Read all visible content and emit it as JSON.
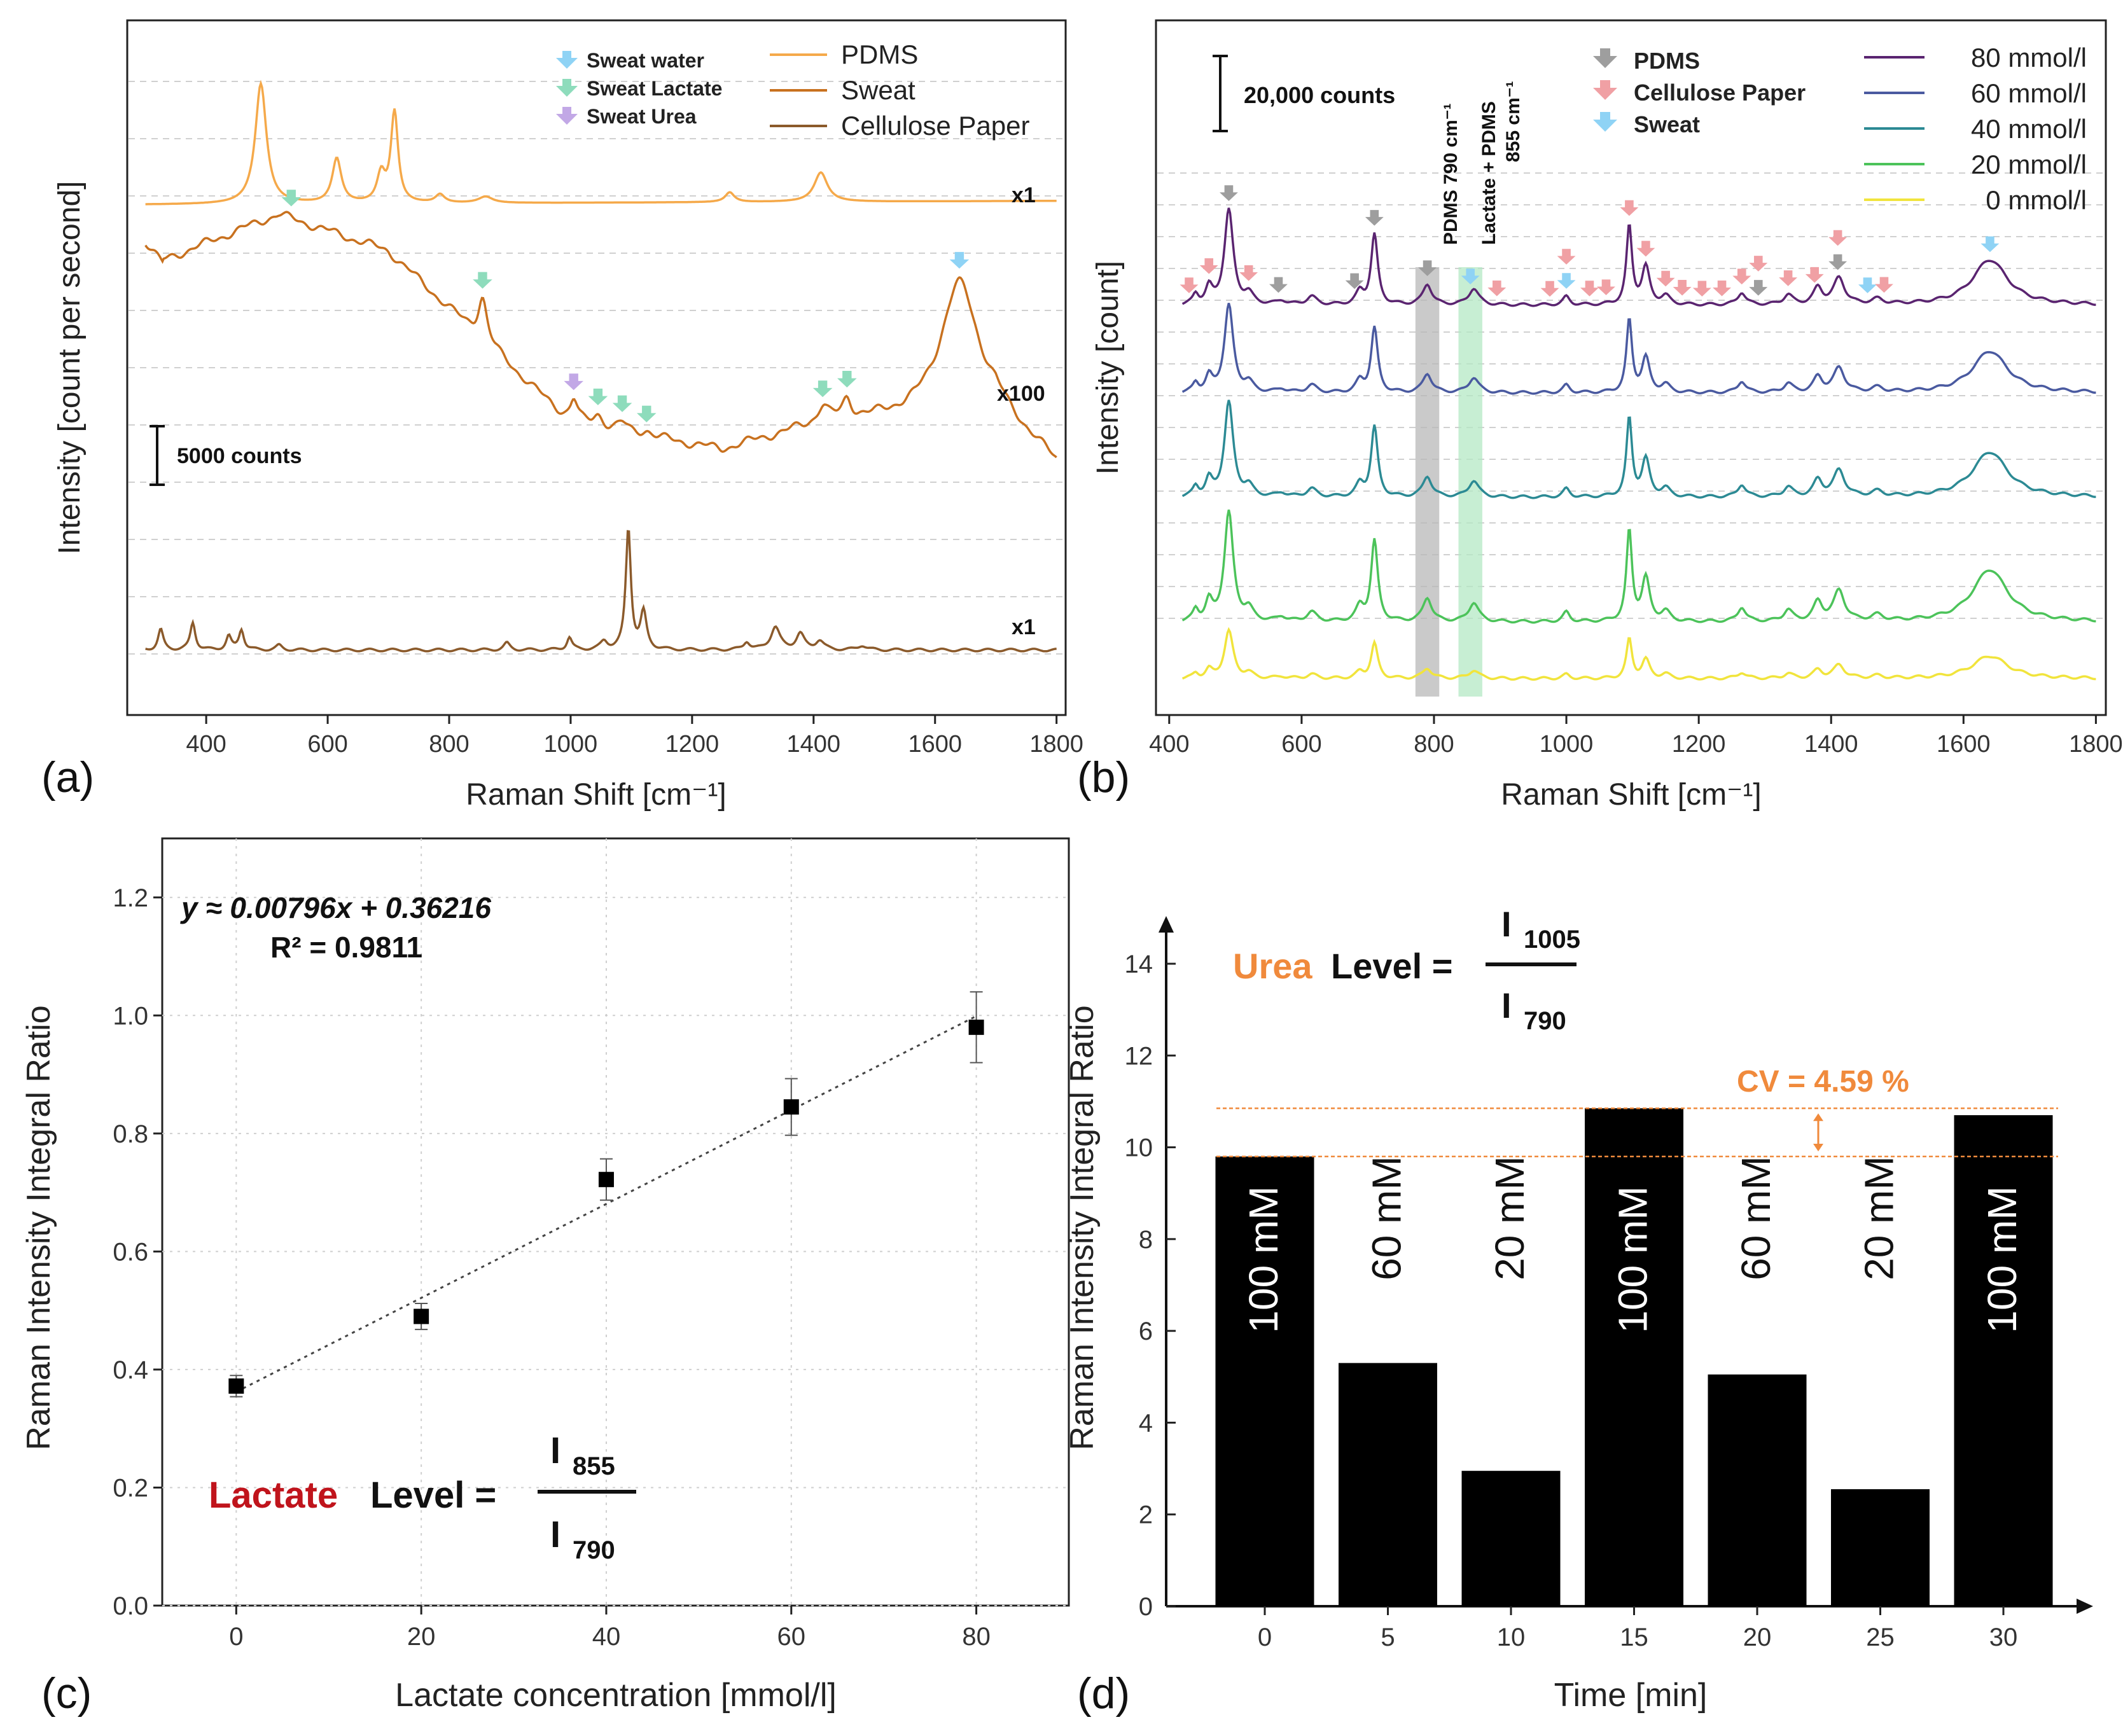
{
  "chart_data": [
    {
      "panel": "(a)",
      "type": "line",
      "xlabel": "Raman Shift [cm⁻¹]",
      "ylabel": "Intensity [count per second]",
      "xlim": [
        270,
        1815
      ],
      "xticks": [
        400,
        600,
        800,
        1000,
        1200,
        1400,
        1600,
        1800
      ],
      "grid": "horizontal dashed",
      "legend_lines": [
        "PDMS",
        "Sweat",
        "Cellulose Paper"
      ],
      "legend_markers": [
        "Sweat water",
        "Sweat Lactate",
        "Sweat Urea"
      ],
      "scale_bar": "5000 counts",
      "series": [
        {
          "name": "PDMS",
          "color": "#f5a94a",
          "multiplier": "x1",
          "baseline": 0.92,
          "peaks": [
            [
              490,
              8.6,
              11
            ],
            [
              615,
              3.2,
              9
            ],
            [
              710,
              6.5,
              7
            ],
            [
              688,
              2.0,
              8
            ],
            [
              785,
              0.6,
              9
            ],
            [
              860,
              0.45,
              14
            ],
            [
              1262,
              0.7,
              9
            ],
            [
              1412,
              2.1,
              13
            ]
          ]
        },
        {
          "name": "Sweat",
          "color": "#c8711f",
          "multiplier": "x100",
          "arrows": [
            [
              540,
              "Sweat Lactate"
            ],
            [
              855,
              "Sweat Lactate"
            ],
            [
              1005,
              "Sweat Urea"
            ],
            [
              1045,
              "Sweat Lactate"
            ],
            [
              1085,
              "Sweat Lactate"
            ],
            [
              1125,
              "Sweat Lactate"
            ],
            [
              1415,
              "Sweat Lactate"
            ],
            [
              1455,
              "Sweat Lactate"
            ],
            [
              1640,
              "Sweat water"
            ]
          ]
        },
        {
          "name": "Cellulose Paper",
          "color": "#8b5a2b",
          "multiplier": "x1",
          "baseline": 0.28,
          "peaks": [
            [
              325,
              0.9,
              5
            ],
            [
              378,
              1.2,
              5
            ],
            [
              437,
              0.6,
              5
            ],
            [
              458,
              0.9,
              5
            ],
            [
              520,
              0.2,
              6
            ],
            [
              895,
              0.3,
              6
            ],
            [
              998,
              0.55,
              5
            ],
            [
              1055,
              0.35,
              7
            ],
            [
              1095,
              5.3,
              5
            ],
            [
              1120,
              1.6,
              6
            ],
            [
              1290,
              0.35,
              6
            ],
            [
              1337,
              1.0,
              9
            ],
            [
              1378,
              0.7,
              8
            ],
            [
              1410,
              0.4,
              8
            ],
            [
              1480,
              0.2,
              8
            ]
          ]
        }
      ]
    },
    {
      "panel": "(b)",
      "type": "line",
      "xlabel": "Raman Shift [cm⁻¹]",
      "ylabel": "Intensity [count]",
      "xlim": [
        380,
        1815
      ],
      "xticks": [
        400,
        600,
        800,
        1000,
        1200,
        1400,
        1600,
        1800
      ],
      "grid": "horizontal dashed",
      "scale_bar": "20,000 counts",
      "legend_markers": [
        "PDMS",
        "Cellulose Paper",
        "Sweat"
      ],
      "bands": [
        {
          "label": "PDMS 790 cm⁻¹",
          "center": 790,
          "color": "#b8b8b8"
        },
        {
          "label": "Lactate + PDMS 855 cm⁻¹",
          "center": 855,
          "color": "#b4e8c4"
        }
      ],
      "series": [
        {
          "name": "80 mmol/l",
          "color": "#5a2470",
          "offset": 4,
          "scale": 1.0
        },
        {
          "name": "60 mmol/l",
          "color": "#4a5aa0",
          "offset": 3,
          "scale": 1.0
        },
        {
          "name": "40 mmol/l",
          "color": "#2c8a94",
          "offset": 2,
          "scale": 1.0
        },
        {
          "name": "20 mmol/l",
          "color": "#4cc35a",
          "offset": 1,
          "scale": 1.0
        },
        {
          "name": "0 mmol/l",
          "color": "#f1e43c",
          "offset": 0,
          "scale": 0.55
        }
      ],
      "peak_profile": [
        [
          440,
          0.12,
          5
        ],
        [
          460,
          0.2,
          6
        ],
        [
          490,
          1.15,
          8
        ],
        [
          520,
          0.12,
          8
        ],
        [
          570,
          0.05,
          8
        ],
        [
          615,
          0.1,
          9
        ],
        [
          688,
          0.15,
          7
        ],
        [
          710,
          0.85,
          6
        ],
        [
          790,
          0.25,
          8
        ],
        [
          860,
          0.2,
          9
        ],
        [
          1000,
          0.1,
          6
        ],
        [
          1095,
          0.95,
          5
        ],
        [
          1120,
          0.45,
          7
        ],
        [
          1150,
          0.1,
          8
        ],
        [
          1265,
          0.15,
          7
        ],
        [
          1335,
          0.12,
          8
        ],
        [
          1380,
          0.2,
          8
        ],
        [
          1412,
          0.32,
          10
        ],
        [
          1470,
          0.06,
          10
        ],
        [
          1640,
          0.55,
          32
        ]
      ],
      "arrows": [
        [
          430,
          "Cellulose Paper"
        ],
        [
          460,
          "Cellulose Paper"
        ],
        [
          490,
          "PDMS"
        ],
        [
          520,
          "Cellulose Paper"
        ],
        [
          565,
          "PDMS"
        ],
        [
          680,
          "PDMS"
        ],
        [
          710,
          "PDMS"
        ],
        [
          790,
          "PDMS"
        ],
        [
          855,
          "Sweat"
        ],
        [
          895,
          "Cellulose Paper"
        ],
        [
          975,
          "Cellulose Paper"
        ],
        [
          1000,
          "Sweat"
        ],
        [
          1000,
          "Cellulose Paper"
        ],
        [
          1035,
          "Cellulose Paper"
        ],
        [
          1060,
          "Cellulose Paper"
        ],
        [
          1095,
          "Cellulose Paper"
        ],
        [
          1120,
          "Cellulose Paper"
        ],
        [
          1150,
          "Cellulose Paper"
        ],
        [
          1175,
          "Cellulose Paper"
        ],
        [
          1205,
          "Cellulose Paper"
        ],
        [
          1235,
          "Cellulose Paper"
        ],
        [
          1265,
          "Cellulose Paper"
        ],
        [
          1290,
          "PDMS"
        ],
        [
          1290,
          "Cellulose Paper"
        ],
        [
          1335,
          "Cellulose Paper"
        ],
        [
          1375,
          "Cellulose Paper"
        ],
        [
          1410,
          "PDMS"
        ],
        [
          1410,
          "Cellulose Paper"
        ],
        [
          1455,
          "Sweat"
        ],
        [
          1480,
          "Cellulose Paper"
        ],
        [
          1640,
          "Sweat"
        ]
      ]
    },
    {
      "panel": "(c)",
      "type": "scatter",
      "xlabel": "Lactate concentration [mmol/l]",
      "ylabel": "Raman Intensity Integral Ratio",
      "xlim": [
        -8,
        90
      ],
      "ylim": [
        0.0,
        1.3
      ],
      "xticks": [
        0,
        20,
        40,
        60,
        80
      ],
      "yticks": [
        0.0,
        0.2,
        0.4,
        0.6,
        0.8,
        1.0,
        1.2
      ],
      "grid": "dotted",
      "x": [
        0,
        20,
        40,
        60,
        80
      ],
      "y": [
        0.372,
        0.49,
        0.722,
        0.845,
        0.98
      ],
      "yerr": [
        0.018,
        0.022,
        0.035,
        0.048,
        0.06
      ],
      "fit": {
        "slope": 0.00796,
        "intercept": 0.36216,
        "r2": 0.9811
      },
      "equation_text": "y ≈ 0.00796x + 0.36216",
      "r2_text": "R² = 0.9811",
      "formula": {
        "name": "Lactate",
        "rest": "Level =",
        "numerator": "I",
        "numerator_sub": "855",
        "denominator": "I",
        "denominator_sub": "790",
        "accent": "#c0141c"
      }
    },
    {
      "panel": "(d)",
      "type": "bar",
      "xlabel": "Time [min]",
      "ylabel": "Raman Intensity Integral Ratio",
      "ylim": [
        0,
        15
      ],
      "yticks": [
        0,
        2,
        4,
        6,
        8,
        10,
        12,
        14
      ],
      "x": [
        0,
        5,
        10,
        15,
        20,
        25,
        30
      ],
      "values": [
        9.8,
        5.3,
        2.95,
        10.85,
        5.05,
        2.55,
        10.7
      ],
      "bar_labels": [
        "100 mM",
        "60 mM",
        "20 mM",
        "100 mM",
        "60 mM",
        "20 mM",
        "100 mM"
      ],
      "bar_color": "#000000",
      "reference_lines": [
        10.85,
        9.8
      ],
      "cv_text": "CV = 4.59 %",
      "formula": {
        "name": "Urea",
        "rest": "Level =",
        "numerator": "I",
        "numerator_sub": "1005",
        "denominator": "I",
        "denominator_sub": "790",
        "accent": "#f08a3c"
      }
    }
  ],
  "panel_labels": [
    "(a)",
    "(b)",
    "(c)",
    "(d)"
  ]
}
